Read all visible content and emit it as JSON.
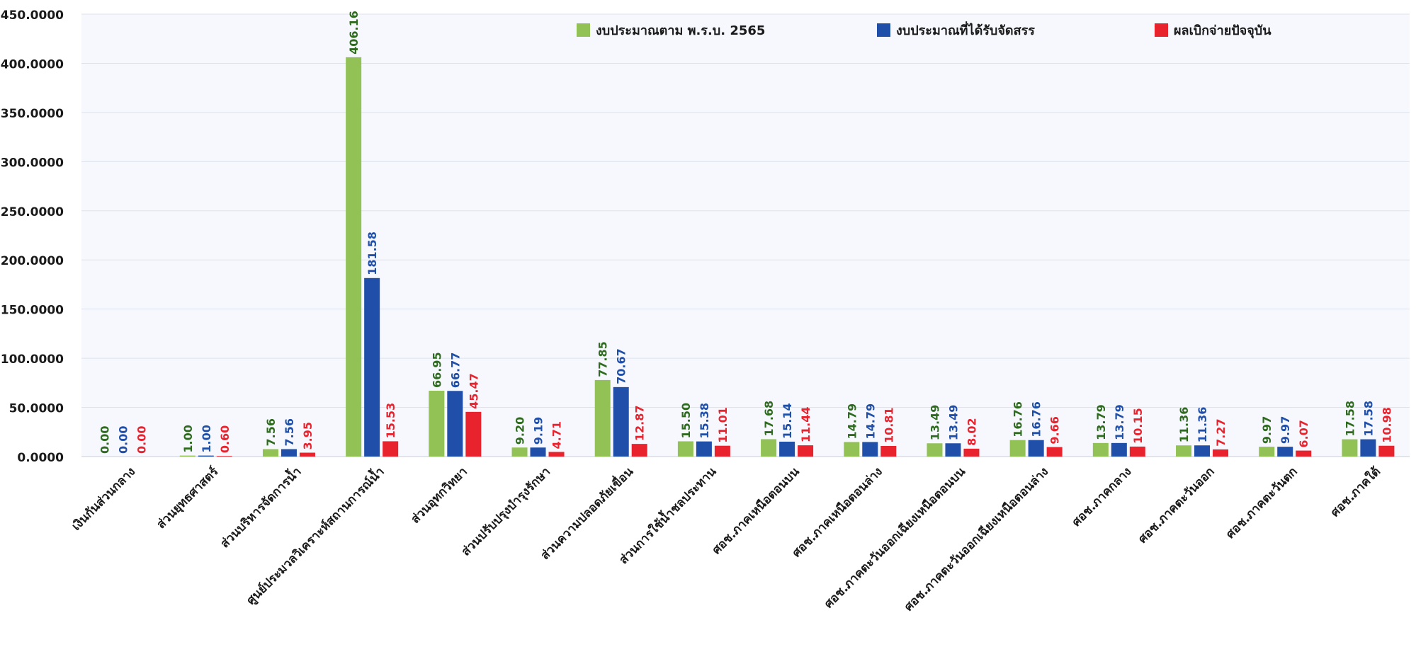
{
  "chart_data": {
    "type": "bar",
    "ylim": [
      0,
      450
    ],
    "yticks": [
      "0.0000",
      "50.0000",
      "100.0000",
      "150.0000",
      "200.0000",
      "250.0000",
      "300.0000",
      "350.0000",
      "400.0000",
      "450.0000"
    ],
    "grid": true,
    "legend_position": "top",
    "categories": [
      "เงินกันส่วนกลาง",
      "ส่วนยุทธศาสตร์",
      "ส่วนบริหารจัดการน้ำ",
      "ศูนย์ประมวลวิเคราะห์สถานการณ์น้ำ",
      "ส่วนอุทกวิทยา",
      "ส่วนปรับปรุงบำรุงรักษา",
      "ส่วนความปลอดภัยเขื่อน",
      "ส่วนการใช้น้ำชลประทาน",
      "ศอช.ภาคเหนือตอนบน",
      "ศอช.ภาคเหนือตอนล่าง",
      "ศอช.ภาคตะวันออกเฉียงเหนือตอนบน",
      "ศอช.ภาคตะวันออกเฉียงเหนือตอนล่าง",
      "ศอช.ภาคกลาง",
      "ศอช.ภาคตะวันออก",
      "ศอช.ภาคตะวันตก",
      "ศอช.ภาคใต้"
    ],
    "series": [
      {
        "name": "งบประมาณตาม พ.ร.บ. 2565",
        "color": "#92c255",
        "label_color": "#2e6b1e",
        "values": [
          0.0,
          1.0,
          7.56,
          406.16,
          66.95,
          9.2,
          77.85,
          15.5,
          17.68,
          14.79,
          13.49,
          16.76,
          13.79,
          11.36,
          9.97,
          17.58
        ],
        "labels": [
          "0.00",
          "1.00",
          "7.56",
          "406.16",
          "66.95",
          "9.20",
          "77.85",
          "15.50",
          "17.68",
          "14.79",
          "13.49",
          "16.76",
          "13.79",
          "11.36",
          "9.97",
          "17.58"
        ]
      },
      {
        "name": "งบประมาณที่ได้รับจัดสรร",
        "color": "#1f4fa8",
        "label_color": "#1f4fa8",
        "values": [
          0.0,
          1.0,
          7.56,
          181.58,
          66.77,
          9.19,
          70.67,
          15.38,
          15.14,
          14.79,
          13.49,
          16.76,
          13.79,
          11.36,
          9.97,
          17.58
        ],
        "labels": [
          "0.00",
          "1.00",
          "7.56",
          "181.58",
          "66.77",
          "9.19",
          "70.67",
          "15.38",
          "15.14",
          "14.79",
          "13.49",
          "16.76",
          "13.79",
          "11.36",
          "9.97",
          "17.58"
        ]
      },
      {
        "name": "ผลเบิกจ่ายปัจจุบัน",
        "color": "#e8232e",
        "label_color": "#e8232e",
        "values": [
          0.0,
          0.6,
          3.95,
          15.53,
          45.47,
          4.71,
          12.87,
          11.01,
          11.44,
          10.81,
          8.02,
          9.66,
          10.15,
          7.27,
          6.07,
          10.98
        ],
        "labels": [
          "0.00",
          "0.60",
          "3.95",
          "15.53",
          "45.47",
          "4.71",
          "12.87",
          "11.01",
          "11.44",
          "10.81",
          "8.02",
          "9.66",
          "10.15",
          "7.27",
          "6.07",
          "10.98"
        ]
      }
    ]
  }
}
